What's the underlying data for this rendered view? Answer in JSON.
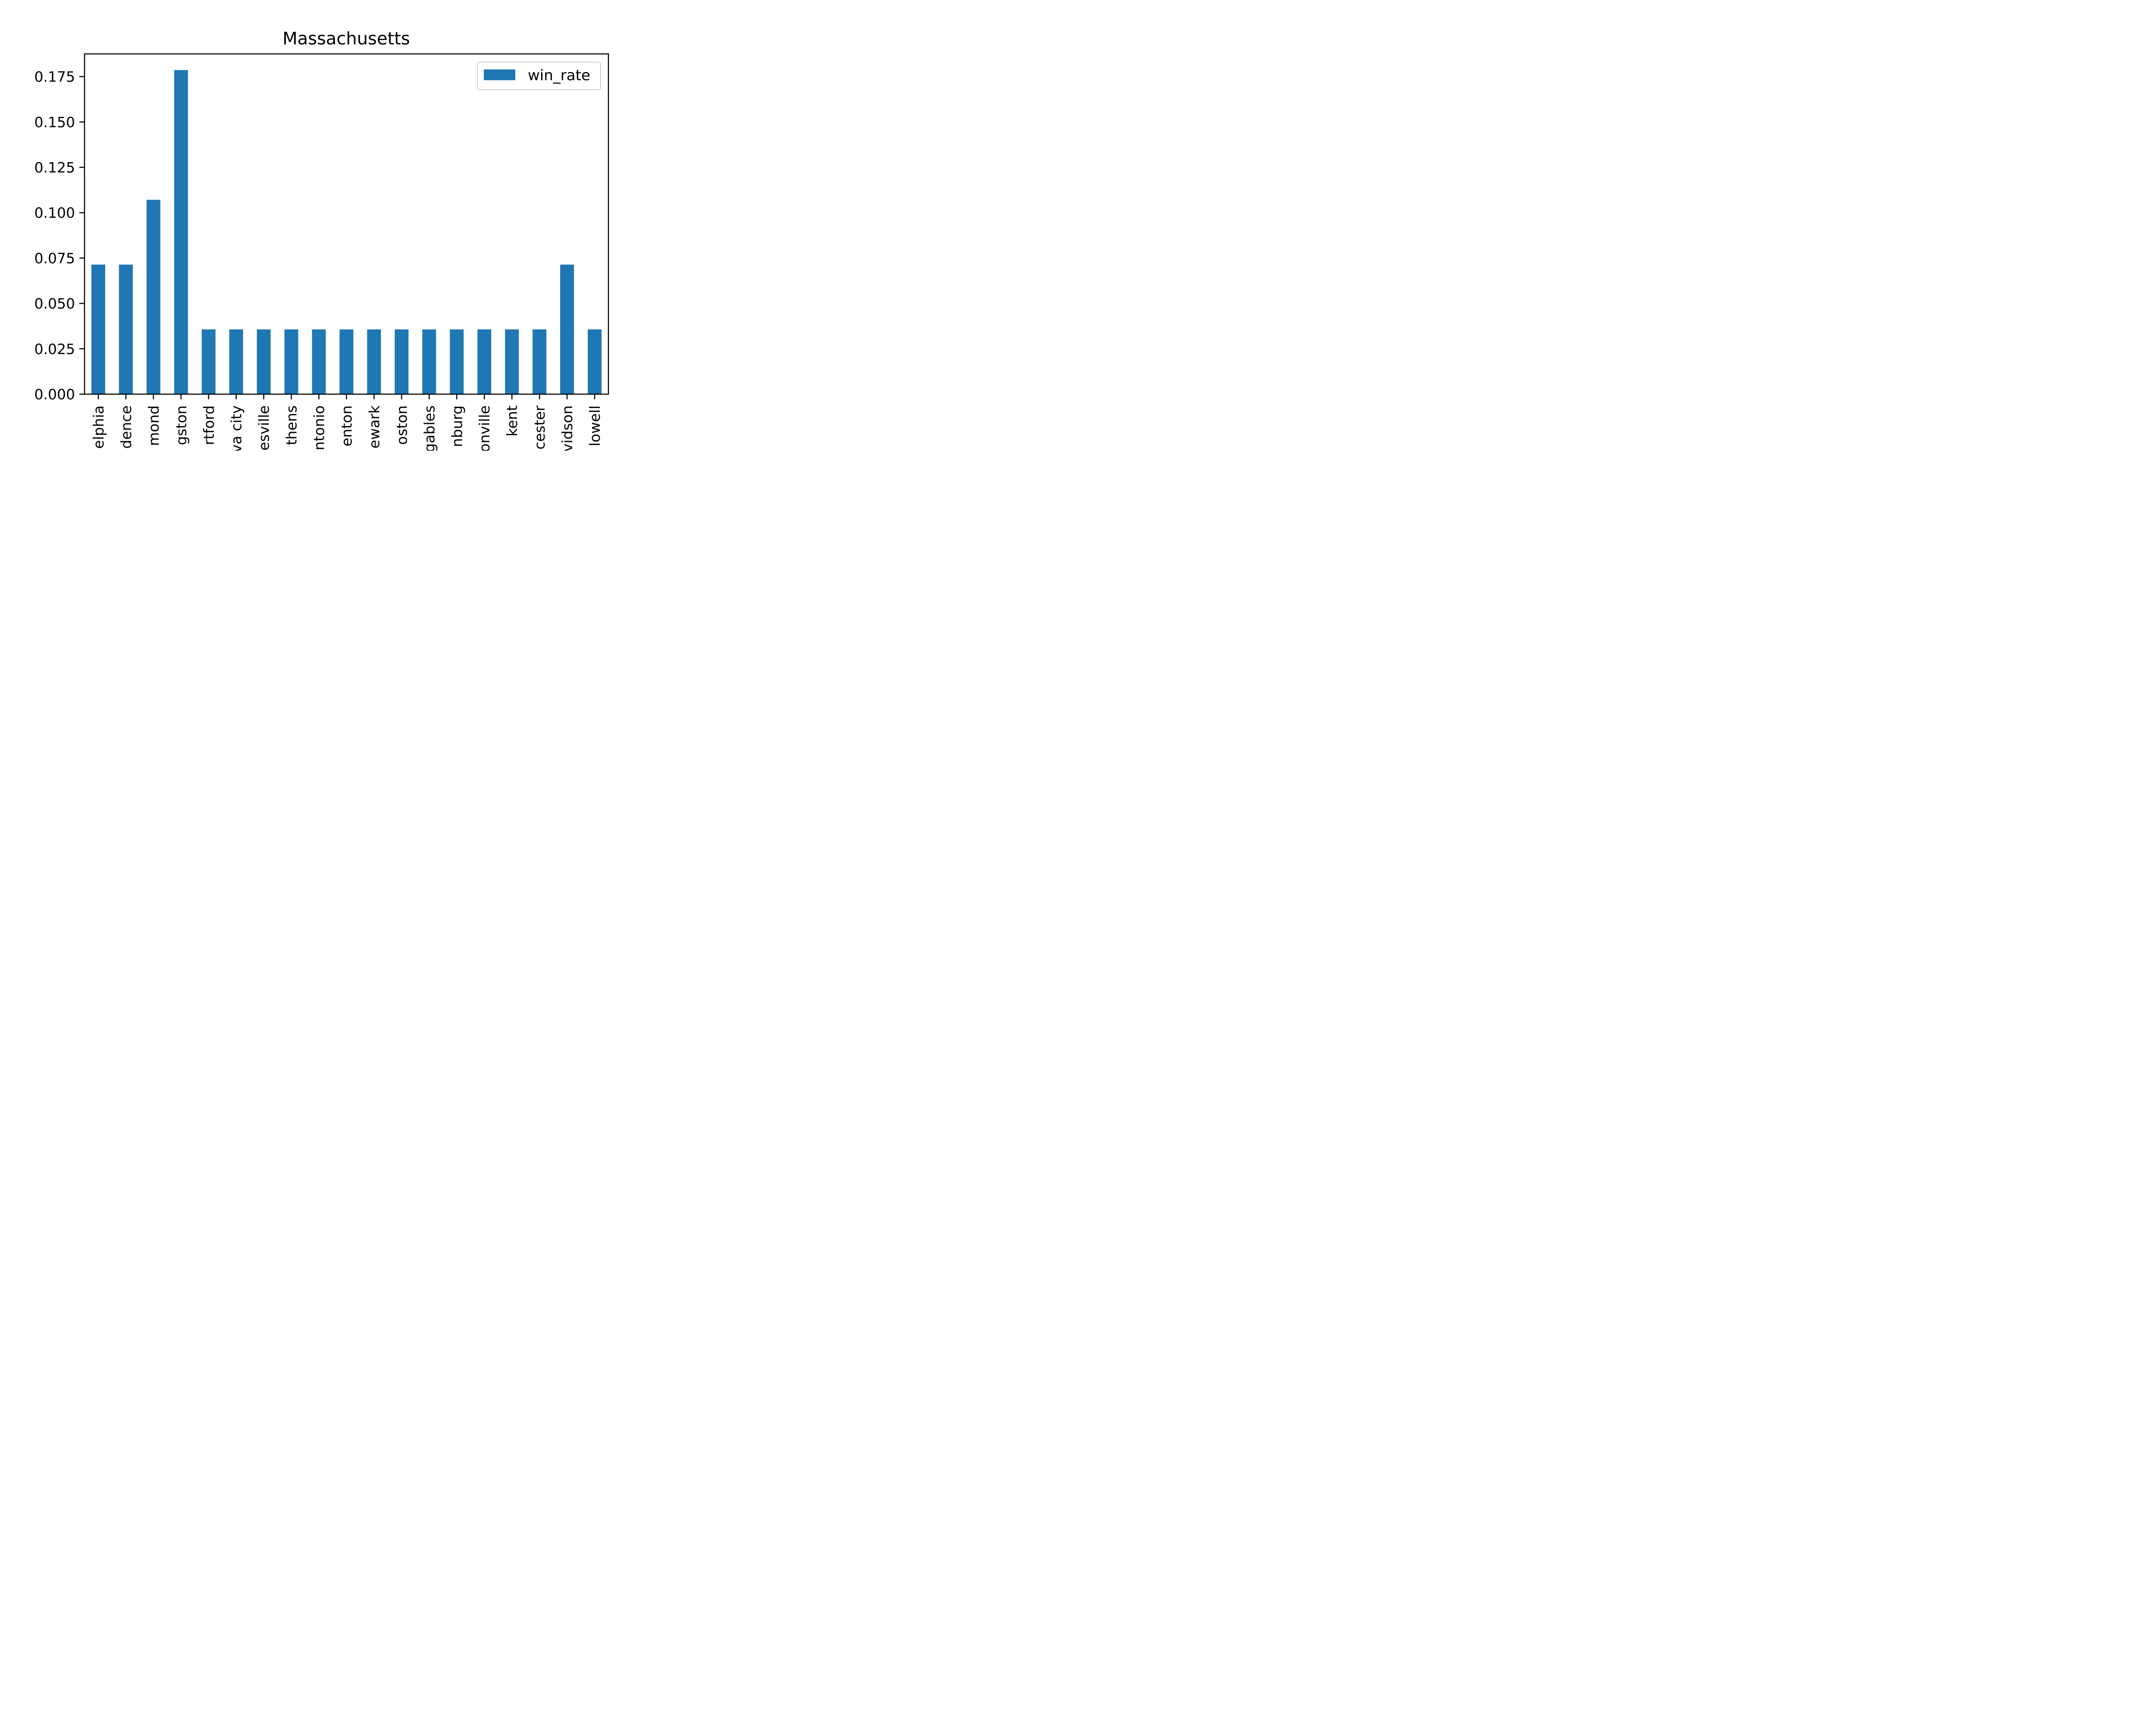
{
  "chart_data": {
    "type": "bar",
    "title": "Massachusetts",
    "xlabel": "",
    "ylabel": "",
    "categories": [
      "elphia",
      "dence",
      "mond",
      "gston",
      "rtford",
      "va city",
      "esville",
      "thens",
      "ntonio",
      "enton",
      "ewark",
      "oston",
      "gables",
      "nburg",
      "onville",
      "kent",
      "cester",
      "vidson",
      "lowell"
    ],
    "series": [
      {
        "name": "win_rate",
        "color": "#1f77b4",
        "values": [
          0.0714,
          0.0714,
          0.1071,
          0.1786,
          0.0357,
          0.0357,
          0.0357,
          0.0357,
          0.0357,
          0.0357,
          0.0357,
          0.0357,
          0.0357,
          0.0357,
          0.0357,
          0.0357,
          0.0357,
          0.0714,
          0.0357
        ]
      }
    ],
    "yticks": [
      "0.000",
      "0.025",
      "0.050",
      "0.075",
      "0.100",
      "0.125",
      "0.150",
      "0.175"
    ],
    "ylim": [
      0,
      0.1875
    ],
    "grid": false,
    "legend": "top-right"
  }
}
